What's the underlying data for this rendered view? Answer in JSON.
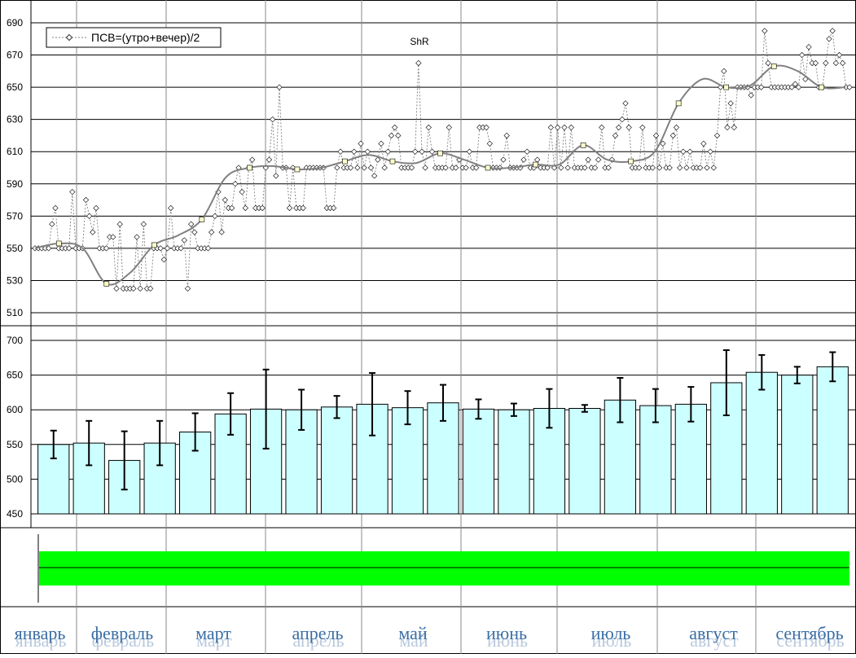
{
  "chart_data": [
    {
      "type": "line",
      "title": "ShR",
      "ylim": [
        510,
        690
      ],
      "yticks": [
        "690",
        "670",
        "650",
        "630",
        "610",
        "590",
        "570",
        "550",
        "530",
        "510"
      ],
      "grid": true,
      "legend": {
        "placement": "top-left",
        "label": "ПСВ=(утро+вечер)/2"
      },
      "series": [
        {
          "name": "ПСВ=(утро+вечер)/2",
          "style": "dashed-diamond",
          "values": [
            550,
            550,
            550,
            550,
            550,
            565,
            575,
            550,
            550,
            550,
            550,
            585,
            550,
            550,
            550,
            580,
            570,
            560,
            575,
            550,
            550,
            550,
            557,
            557,
            525,
            565,
            525,
            525,
            525,
            525,
            557,
            525,
            565,
            525,
            525,
            550,
            550,
            550,
            543,
            550,
            575,
            550,
            550,
            550,
            555,
            525,
            565,
            560,
            550,
            550,
            550,
            550,
            560,
            570,
            585,
            560,
            580,
            575,
            575,
            590,
            600,
            585,
            575,
            600,
            605,
            575,
            575,
            575,
            600,
            605,
            630,
            595,
            650,
            600,
            600,
            575,
            600,
            575,
            575,
            575,
            600,
            600,
            600,
            600,
            600,
            600,
            575,
            575,
            575,
            600,
            610,
            600,
            600,
            600,
            610,
            600,
            615,
            600,
            610,
            600,
            595,
            605,
            615,
            600,
            610,
            620,
            625,
            620,
            600,
            600,
            600,
            600,
            610,
            665,
            610,
            600,
            625,
            610,
            600,
            600,
            600,
            600,
            625,
            600,
            600,
            605,
            600,
            600,
            610,
            600,
            600,
            625,
            625,
            625,
            615,
            600,
            600,
            600,
            605,
            620,
            600,
            600,
            600,
            600,
            605,
            610,
            600,
            600,
            605,
            600,
            600,
            600,
            625,
            600,
            625,
            600,
            625,
            600,
            625,
            600,
            600,
            600,
            600,
            605,
            600,
            600,
            605,
            625,
            600,
            600,
            605,
            620,
            625,
            630,
            640,
            625,
            600,
            600,
            600,
            625,
            600,
            600,
            600,
            620,
            600,
            615,
            600,
            600,
            620,
            625,
            600,
            610,
            600,
            610,
            600,
            600,
            600,
            615,
            600,
            610,
            600,
            620,
            650,
            660,
            625,
            640,
            625,
            650,
            650,
            650,
            650,
            645,
            650,
            650,
            650,
            685,
            665,
            650,
            650,
            650,
            650,
            650,
            650,
            650,
            652,
            650,
            670,
            655,
            675,
            665,
            665,
            650,
            650,
            665,
            680,
            685,
            665,
            670,
            665,
            650,
            650
          ]
        },
        {
          "name": "trend",
          "style": "smooth-gray",
          "values": [
            550,
            553,
            550,
            528,
            535,
            552,
            558,
            568,
            594,
            600,
            601,
            599,
            600,
            604,
            608,
            604,
            603,
            609,
            605,
            600,
            600,
            602,
            602,
            614,
            605,
            604,
            610,
            640,
            655,
            650,
            651,
            663,
            660,
            650,
            650
          ]
        }
      ]
    },
    {
      "type": "bar",
      "ylim": [
        450,
        700
      ],
      "yticks": [
        "700",
        "650",
        "600",
        "550",
        "500",
        "450"
      ],
      "grid": true,
      "series": [
        {
          "name": "",
          "values": [
            550,
            552,
            527,
            552,
            568,
            594,
            601,
            600,
            604,
            608,
            603,
            610,
            601,
            600,
            602,
            602,
            614,
            606,
            608,
            639,
            654,
            650,
            662
          ],
          "error": [
            20,
            32,
            42,
            32,
            27,
            30,
            57,
            29,
            16,
            45,
            24,
            26,
            14,
            9,
            28,
            5,
            32,
            24,
            25,
            47,
            25,
            12,
            21
          ]
        }
      ]
    }
  ],
  "status_band": {
    "color": "#00ff00"
  },
  "months": [
    "январь",
    "февраль",
    "март",
    "апрель",
    "май",
    "июнь",
    "июль",
    "август",
    "сентябрь"
  ],
  "colors": {
    "bar_fill": "#ccffff",
    "line_marker": "#ffffcc",
    "trend": "#808080",
    "grid": "#000000"
  }
}
